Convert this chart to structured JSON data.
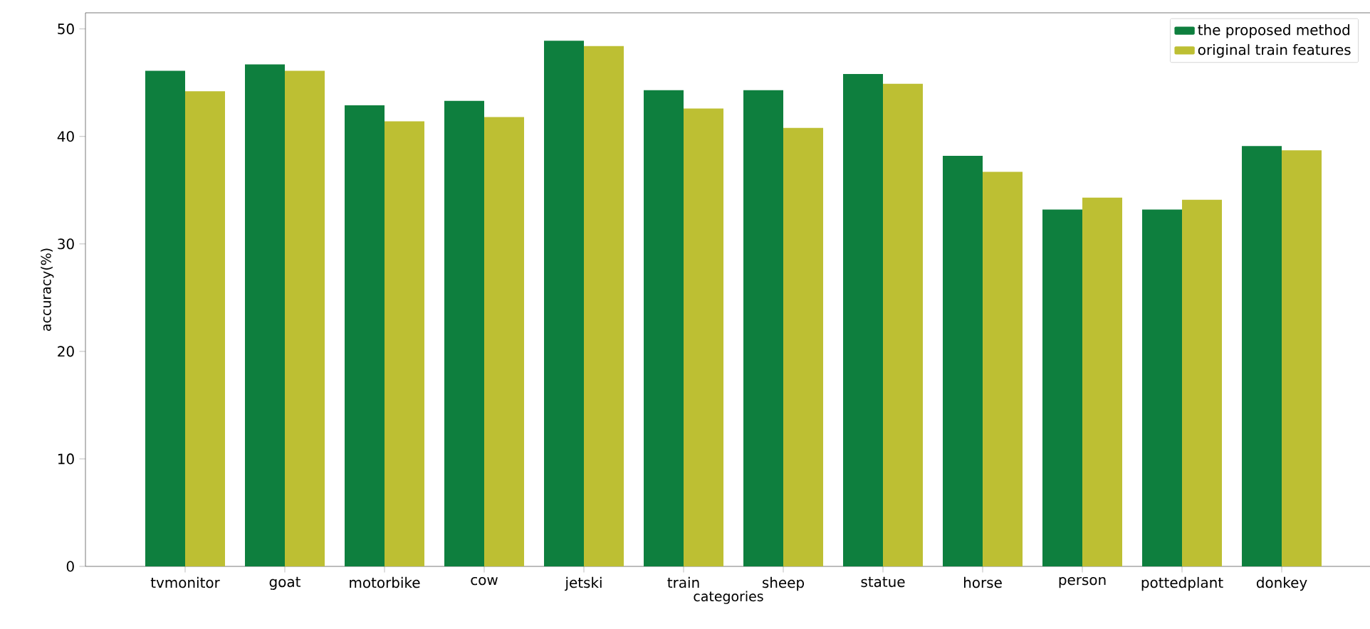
{
  "chart_data": {
    "type": "bar",
    "xlabel": "categories",
    "ylabel": "accuracy(%)",
    "categories": [
      "tvmonitor",
      "goat",
      "motorbike",
      "cow",
      "jetski",
      "train",
      "sheep",
      "statue",
      "horse",
      "person",
      "pottedplant",
      "donkey"
    ],
    "series": [
      {
        "name": "the proposed method",
        "color": "#0e7f3e",
        "values": [
          46.1,
          46.7,
          42.9,
          43.3,
          48.9,
          44.3,
          44.3,
          45.8,
          38.2,
          33.2,
          33.2,
          39.1
        ]
      },
      {
        "name": "original train features",
        "color": "#bdbf33",
        "values": [
          44.2,
          46.1,
          41.4,
          41.8,
          48.4,
          42.6,
          40.8,
          44.9,
          36.7,
          34.3,
          34.1,
          38.7
        ]
      }
    ],
    "ylim": [
      0,
      51.5
    ],
    "yticks": [
      0,
      10,
      20,
      30,
      40,
      50
    ],
    "legend": "top right"
  }
}
